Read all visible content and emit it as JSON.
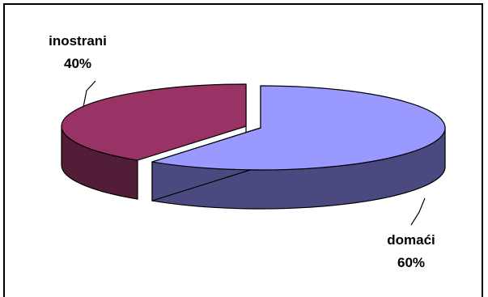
{
  "chart_data": {
    "type": "pie",
    "style": "3d-exploded",
    "title": "",
    "labels": [
      "inostrani",
      "domaći"
    ],
    "values": [
      40,
      60
    ],
    "value_labels": [
      "40%",
      "60%"
    ],
    "colors": {
      "inostrani": {
        "top": "#993366",
        "side": "#521d37"
      },
      "domaći": {
        "top": "#9999ff",
        "side": "#4b4a80"
      }
    },
    "legend": "none"
  }
}
